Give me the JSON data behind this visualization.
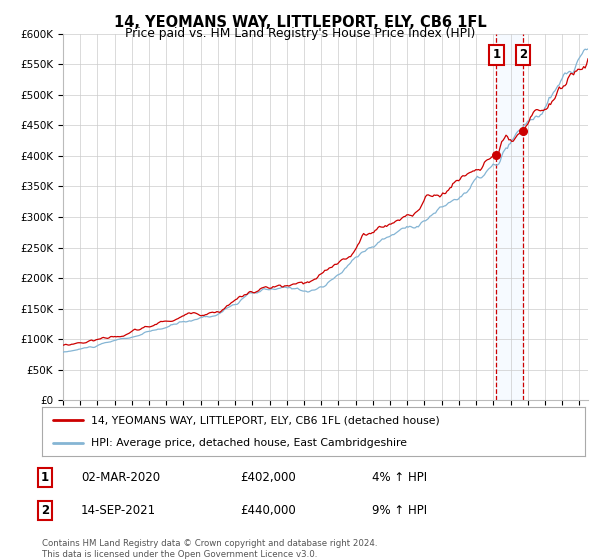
{
  "title": "14, YEOMANS WAY, LITTLEPORT, ELY, CB6 1FL",
  "subtitle": "Price paid vs. HM Land Registry's House Price Index (HPI)",
  "legend_line1": "14, YEOMANS WAY, LITTLEPORT, ELY, CB6 1FL (detached house)",
  "legend_line2": "HPI: Average price, detached house, East Cambridgeshire",
  "footer1": "Contains HM Land Registry data © Crown copyright and database right 2024.",
  "footer2": "This data is licensed under the Open Government Licence v3.0.",
  "ylim": [
    0,
    600000
  ],
  "xlim_start": 1995.0,
  "xlim_end": 2025.5,
  "yticks": [
    0,
    50000,
    100000,
    150000,
    200000,
    250000,
    300000,
    350000,
    400000,
    450000,
    500000,
    550000,
    600000
  ],
  "ytick_labels": [
    "£0",
    "£50K",
    "£100K",
    "£150K",
    "£200K",
    "£250K",
    "£300K",
    "£350K",
    "£400K",
    "£450K",
    "£500K",
    "£550K",
    "£600K"
  ],
  "xticks": [
    1995,
    1996,
    1997,
    1998,
    1999,
    2000,
    2001,
    2002,
    2003,
    2004,
    2005,
    2006,
    2007,
    2008,
    2009,
    2010,
    2011,
    2012,
    2013,
    2014,
    2015,
    2016,
    2017,
    2018,
    2019,
    2020,
    2021,
    2022,
    2023,
    2024,
    2025
  ],
  "red_color": "#cc0000",
  "blue_color": "#85b5d4",
  "marker_color": "#cc0000",
  "vline_color": "#cc0000",
  "shade_color": "#ddeeff",
  "point1_x": 2020.17,
  "point1_y": 402000,
  "point1_label": "1",
  "point1_date": "02-MAR-2020",
  "point1_price": "£402,000",
  "point1_hpi": "4% ↑ HPI",
  "point2_x": 2021.72,
  "point2_y": 440000,
  "point2_label": "2",
  "point2_date": "14-SEP-2021",
  "point2_price": "£440,000",
  "point2_hpi": "9% ↑ HPI",
  "bg_color": "#ffffff",
  "plot_bg_color": "#ffffff",
  "grid_color": "#cccccc"
}
